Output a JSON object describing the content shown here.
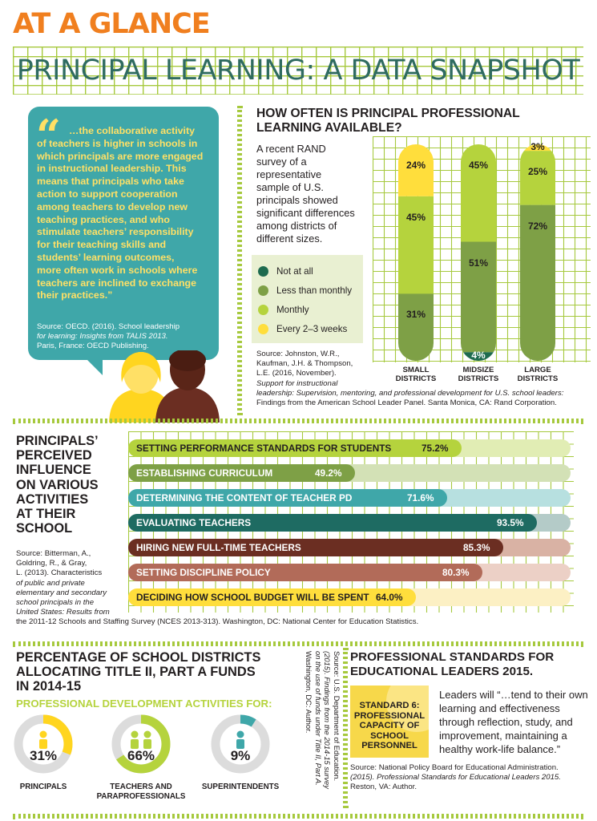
{
  "header": {
    "kicker": "AT A GLANCE",
    "title": "PRINCIPAL LEARNING: A DATA SNAPSHOT"
  },
  "quote": {
    "mark": "“",
    "lines": [
      "…the collaborative activity",
      "of teachers is higher in schools in",
      "which principals are more engaged",
      "in instructional leadership. This",
      "means that principals who take",
      "action to support cooperation",
      "among teachers to develop new",
      "teaching practices, and who",
      "stimulate teachers’ responsibility",
      "for their teaching skills and",
      "students’ learning outcomes,",
      "more often work in schools where",
      "teachers are inclined to exchange",
      "their practices.”"
    ],
    "source_lines": [
      "Source: OECD. (2016). School leadership",
      "for learning: Insights from TALIS 2013.",
      "Paris, France: OECD Publishing."
    ]
  },
  "availability": {
    "heading_lines": [
      "HOW OFTEN IS PRINCIPAL PROFESSIONAL",
      "LEARNING AVAILABLE?"
    ],
    "intro_lines": [
      "A recent RAND",
      "survey of a",
      "representative",
      "sample of U.S.",
      "principals showed",
      "significant differences",
      "among districts of",
      "different sizes."
    ],
    "source_lines": [
      "Source: Johnston, W.R.,",
      "Kaufman, J.H. & Thompson,",
      "L.E. (2016, November).",
      "Support for instructional",
      "leadership: Supervision, mentoring, and professional development for U.S. school leaders:",
      "Findings from the American School Leader Panel. Santa Monica, CA: Rand Corporation."
    ]
  },
  "influence": {
    "heading_lines": [
      "PRINCIPALS’",
      "PERCEIVED",
      "INFLUENCE",
      "ON VARIOUS",
      "ACTIVITIES",
      "AT THEIR",
      "SCHOOL"
    ],
    "source_lines": [
      "Source: Bitterman, A.,",
      "Goldring, R., & Gray,",
      "L. (2013). Characteristics",
      "of public and private",
      "elementary and secondary",
      "school principals in the",
      "United States: Results from",
      "the 2011-12 Schools and Staffing Survey (NCES 2013-313). Washington, DC: National Center for Education Statistics."
    ]
  },
  "title2": {
    "heading_lines": [
      "PERCENTAGE OF SCHOOL DISTRICTS",
      "ALLOCATING TITLE II, PART A FUNDS",
      "IN 2014-15"
    ],
    "subheading": "PROFESSIONAL DEVELOPMENT ACTIVITIES FOR:",
    "source_lines": [
      "Source: U.S. Department of Education.",
      "(2015). Findings from the 2014-15 survey",
      "on the use of funds under Title II, Part A.",
      "Washington, DC: Author."
    ]
  },
  "standards": {
    "heading_lines": [
      "PROFESSIONAL STANDARDS FOR",
      "EDUCATIONAL LEADERS 2015."
    ],
    "badge_lines": [
      "STANDARD 6:",
      "PROFESSIONAL",
      "CAPACITY OF",
      "SCHOOL",
      "PERSONNEL"
    ],
    "quote_lines": [
      "Leaders will “…tend to their own",
      "learning and effectiveness",
      "through reflection, study, and",
      "improvement, maintaining a",
      "healthy work-life balance.”"
    ],
    "source_lines": [
      "Source: National Policy Board for Educational Administration.",
      "(2015). Professional Standards for Educational Leaders 2015.",
      "Reston, VA: Author."
    ]
  },
  "colors": {
    "not_at_all": "#1e6b4f",
    "less_than_monthly": "#7ea046",
    "monthly": "#b5d33d",
    "every_2_3_weeks": "#ffde3c",
    "teal": "#3fa7a9",
    "orange": "#f07f1f"
  },
  "chart_data": [
    {
      "type": "bar",
      "stacked": true,
      "categories": [
        "SMALL DISTRICTS",
        "MIDSIZE DISTRICTS",
        "LARGE DISTRICTS"
      ],
      "series": [
        {
          "name": "Not at all",
          "values": [
            0,
            4,
            0
          ]
        },
        {
          "name": "Less than monthly",
          "values": [
            31,
            51,
            72
          ]
        },
        {
          "name": "Monthly",
          "values": [
            45,
            45,
            25
          ]
        },
        {
          "name": "Every 2–3 weeks",
          "values": [
            24,
            0,
            3
          ]
        }
      ],
      "labels": [
        [
          "",
          "31%",
          "45%",
          "24%"
        ],
        [
          "4%",
          "51%",
          "45%",
          ""
        ],
        [
          "",
          "72%",
          "25%",
          "3%"
        ]
      ],
      "ylim": [
        0,
        100
      ],
      "grid": true
    },
    {
      "type": "bar",
      "orientation": "horizontal",
      "categories": [
        "SETTING PERFORMANCE STANDARDS FOR STUDENTS",
        "ESTABLISHING CURRICULUM",
        "DETERMINING THE CONTENT OF TEACHER PD",
        "EVALUATING TEACHERS",
        "HIRING NEW FULL-TIME TEACHERS",
        "SETTING DISCIPLINE POLICY",
        "DECIDING HOW SCHOOL BUDGET WILL BE SPENT"
      ],
      "values": [
        75.2,
        49.2,
        71.6,
        93.5,
        85.3,
        80.3,
        64.0
      ],
      "value_labels": [
        "75.2%",
        "49.2%",
        "71.6%",
        "93.5%",
        "85.3%",
        "80.3%",
        "64.0%"
      ],
      "colors": [
        {
          "fg": "#b5d33d",
          "bg": "#e1edb4",
          "text": "#231f20"
        },
        {
          "fg": "#7ea046",
          "bg": "#d3e1b6",
          "text": "#ffffff"
        },
        {
          "fg": "#3fa7a9",
          "bg": "#b7e0e0",
          "text": "#ffffff"
        },
        {
          "fg": "#1e6b62",
          "bg": "#b4cbc8",
          "text": "#ffffff"
        },
        {
          "fg": "#6b2e22",
          "bg": "#d9b2a4",
          "text": "#ffffff"
        },
        {
          "fg": "#b26b59",
          "bg": "#ecd0c6",
          "text": "#ffffff"
        },
        {
          "fg": "#ffde3c",
          "bg": "#fcf0c4",
          "text": "#231f20"
        }
      ],
      "xlim": [
        0,
        100
      ],
      "grid": true
    },
    {
      "type": "pie",
      "variant": "donut",
      "items": [
        {
          "label": "PRINCIPALS",
          "value": 31,
          "display": "31%",
          "color": "#ffd51f"
        },
        {
          "label": "TEACHERS AND PARAPROFESSIONALS",
          "value": 66,
          "display": "66%",
          "color": "#b5d33d"
        },
        {
          "label": "SUPERINTENDENTS",
          "value": 9,
          "display": "9%",
          "color": "#3fa7a9"
        }
      ]
    }
  ]
}
